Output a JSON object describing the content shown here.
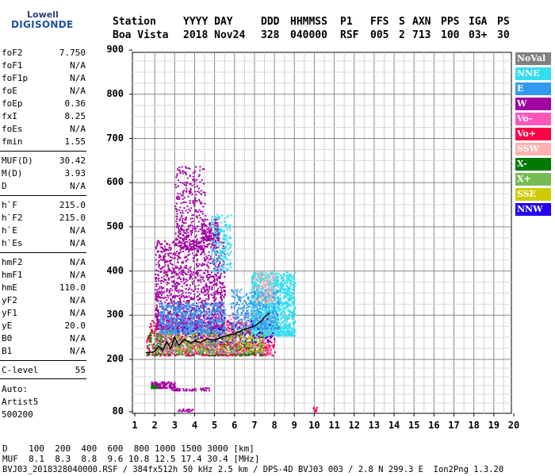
{
  "logo": {
    "line1": "Lowell",
    "line2": "DIGISONDE"
  },
  "header": {
    "labels": [
      {
        "text": "Station",
        "x": 142
      },
      {
        "text": "YYYY DAY",
        "x": 231
      },
      {
        "text": "DDD",
        "x": 329
      },
      {
        "text": "HHMMSS",
        "x": 366
      },
      {
        "text": "P1",
        "x": 429
      },
      {
        "text": "FFS",
        "x": 467
      },
      {
        "text": "S",
        "x": 503
      },
      {
        "text": "AXN",
        "x": 520
      },
      {
        "text": "PPS",
        "x": 556
      },
      {
        "text": "IGA",
        "x": 591
      },
      {
        "text": "PS",
        "x": 627
      }
    ],
    "values": [
      {
        "text": "Boa Vista",
        "x": 142
      },
      {
        "text": "2018 Nov24",
        "x": 231
      },
      {
        "text": "328",
        "x": 329
      },
      {
        "text": "040000",
        "x": 366
      },
      {
        "text": "RSF",
        "x": 429
      },
      {
        "text": "005",
        "x": 467
      },
      {
        "text": "2",
        "x": 503
      },
      {
        "text": "713",
        "x": 520
      },
      {
        "text": "100",
        "x": 556
      },
      {
        "text": "03+",
        "x": 591
      },
      {
        "text": "30",
        "x": 627
      }
    ]
  },
  "params": [
    {
      "label": "foF2",
      "value": "7.750"
    },
    {
      "label": "foF1",
      "value": "N/A"
    },
    {
      "label": "foF1p",
      "value": "N/A"
    },
    {
      "label": "foE",
      "value": "N/A"
    },
    {
      "label": "foEp",
      "value": "0.36"
    },
    {
      "label": "fxI",
      "value": "8.25"
    },
    {
      "label": "foEs",
      "value": "N/A"
    },
    {
      "label": "fmin",
      "value": "1.55"
    },
    {
      "label": "MUF(D)",
      "value": "30.42"
    },
    {
      "label": "M(D)",
      "value": "3.93"
    },
    {
      "label": "D",
      "value": "N/A"
    },
    {
      "label": "h`F",
      "value": "215.0"
    },
    {
      "label": "h`F2",
      "value": "215.0"
    },
    {
      "label": "h`E",
      "value": "N/A"
    },
    {
      "label": "h`Es",
      "value": "N/A"
    },
    {
      "label": "hmF2",
      "value": "N/A"
    },
    {
      "label": "hmF1",
      "value": "N/A"
    },
    {
      "label": "hmE",
      "value": "110.0"
    },
    {
      "label": "yF2",
      "value": "N/A"
    },
    {
      "label": "yF1",
      "value": "N/A"
    },
    {
      "label": "yE",
      "value": "20.0"
    },
    {
      "label": "B0",
      "value": "N/A"
    },
    {
      "label": "B1",
      "value": "N/A"
    },
    {
      "label": "C-level",
      "value": "55"
    }
  ],
  "auto": {
    "line1": "Auto:",
    "line2": "Artist5",
    "line3": "500200"
  },
  "legend": [
    {
      "label": "NoVal",
      "color": "#808080"
    },
    {
      "label": "NNE",
      "color": "#33ddf0"
    },
    {
      "label": "E",
      "color": "#3399ee"
    },
    {
      "label": "W",
      "color": "#a300a3"
    },
    {
      "label": "Vo-",
      "color": "#ff55bb"
    },
    {
      "label": "Vo+",
      "color": "#ff0044"
    },
    {
      "label": "SSW",
      "color": "#ffb0b0"
    },
    {
      "label": "X-",
      "color": "#007a00"
    },
    {
      "label": "X+",
      "color": "#77bb55"
    },
    {
      "label": "SSE",
      "color": "#cccc00"
    },
    {
      "label": "NNW",
      "color": "#2200ee"
    }
  ],
  "footer": {
    "d_line": "D    100  200  400  600  800 1000 1500 3000 [km]",
    "muf_line": "MUF  8.1  8.3  8.8  9.6 10.8 12.5 17.4 30.4 [MHz]",
    "file_line": "BVJ03_2018328040000.RSF / 384fx512h 50 kHz 2.5 km / DPS-4D BVJ03 003 / 2.8 N 299.3 E  Ion2Png 1.3.20"
  },
  "chart_data": {
    "type": "scatter",
    "title": "",
    "xlabel": "",
    "ylabel": "",
    "xlim": [
      1,
      20
    ],
    "ylim": [
      80,
      900
    ],
    "xticks": [
      1,
      2,
      3,
      4,
      5,
      6,
      7,
      8,
      9,
      10,
      11,
      12,
      13,
      14,
      15,
      16,
      17,
      18,
      19,
      20
    ],
    "yticks": [
      80,
      200,
      300,
      400,
      500,
      600,
      700,
      800,
      900
    ],
    "grid": true,
    "legend_position": "right",
    "trace_line": {
      "color": "#000000",
      "x": [
        1.55,
        1.8,
        2.0,
        2.2,
        2.4,
        2.6,
        2.8,
        3.0,
        3.2,
        3.5,
        3.8,
        4.0,
        4.3,
        4.6,
        5.0,
        5.5,
        6.0,
        6.5,
        7.0,
        7.3,
        7.5,
        7.75
      ],
      "y": [
        215,
        216,
        218,
        230,
        220,
        240,
        225,
        250,
        232,
        245,
        236,
        242,
        238,
        246,
        244,
        252,
        258,
        268,
        275,
        285,
        295,
        305
      ]
    },
    "clusters": [
      {
        "series": "Vo+",
        "x": [
          1.55,
          8.0
        ],
        "y": [
          210,
          290
        ],
        "density": 900
      },
      {
        "series": "X-",
        "x": [
          1.6,
          7.5
        ],
        "y": [
          210,
          270
        ],
        "density": 400
      },
      {
        "series": "Vo-",
        "x": [
          2.0,
          7.8
        ],
        "y": [
          215,
          300
        ],
        "density": 500
      },
      {
        "series": "W",
        "x": [
          2.0,
          5.5
        ],
        "y": [
          270,
          470
        ],
        "density": 1300
      },
      {
        "series": "W",
        "x": [
          3.0,
          4.5
        ],
        "y": [
          450,
          640
        ],
        "density": 350
      },
      {
        "series": "W",
        "x": [
          4.3,
          5.2
        ],
        "y": [
          470,
          520
        ],
        "density": 150
      },
      {
        "series": "NNE",
        "x": [
          4.8,
          5.8
        ],
        "y": [
          400,
          530
        ],
        "density": 200
      },
      {
        "series": "E",
        "x": [
          2.2,
          5.5
        ],
        "y": [
          260,
          330
        ],
        "density": 600
      },
      {
        "series": "NNE",
        "x": [
          6.8,
          9.0
        ],
        "y": [
          255,
          400
        ],
        "density": 1300
      },
      {
        "series": "E",
        "x": [
          5.8,
          8.2
        ],
        "y": [
          270,
          360
        ],
        "density": 400
      },
      {
        "series": "X+",
        "x": [
          2.0,
          7.5
        ],
        "y": [
          215,
          260
        ],
        "density": 250
      },
      {
        "series": "SSW",
        "x": [
          7.0,
          8.0
        ],
        "y": [
          330,
          400
        ],
        "density": 120
      },
      {
        "series": "SSE",
        "x": [
          3.0,
          7.5
        ],
        "y": [
          220,
          260
        ],
        "density": 80
      },
      {
        "series": "NNW",
        "x": [
          3.0,
          8.0
        ],
        "y": [
          240,
          300
        ],
        "density": 80
      },
      {
        "series": "NoVal",
        "x": [
          2.0,
          6.0
        ],
        "y": [
          220,
          260
        ],
        "density": 80
      },
      {
        "series": "W",
        "x": [
          1.8,
          3.0
        ],
        "y": [
          135,
          150
        ],
        "density": 120
      },
      {
        "series": "X-",
        "x": [
          1.8,
          2.1
        ],
        "y": [
          135,
          142
        ],
        "density": 25
      },
      {
        "series": "W",
        "x": [
          2.8,
          4.7
        ],
        "y": [
          130,
          136
        ],
        "density": 50
      },
      {
        "series": "W",
        "x": [
          3.0,
          4.0
        ],
        "y": [
          82,
          88
        ],
        "density": 20
      },
      {
        "series": "Vo+",
        "x": [
          9.9,
          10.1
        ],
        "y": [
          82,
          92
        ],
        "density": 10
      }
    ]
  }
}
